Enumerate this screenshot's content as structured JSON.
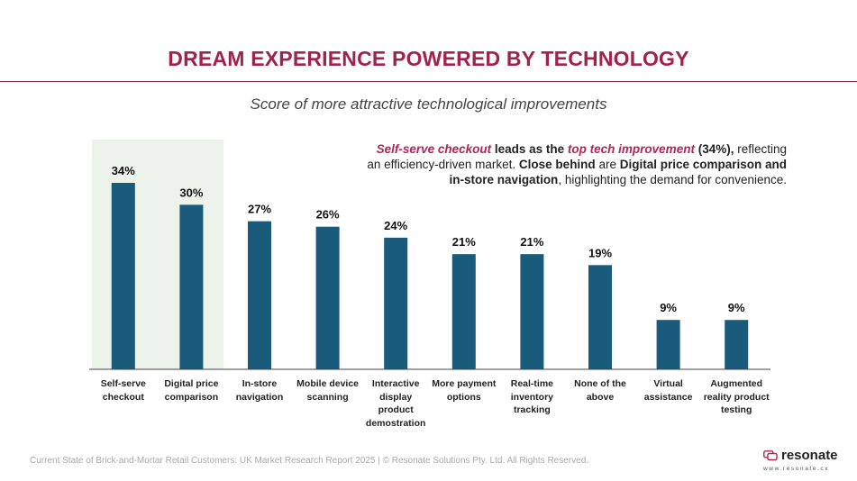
{
  "header": {
    "title": "DREAM EXPERIENCE POWERED BY TECHNOLOGY",
    "subtitle": "Score of more attractive technological improvements"
  },
  "callout": {
    "p1_highlight": "Self-serve checkout",
    "p2": " leads as the ",
    "p3_highlight": "top tech improvement",
    "p4_bold": " (34%),",
    "p5": " reflecting an efficiency-driven market. ",
    "p6_bold": "Close behind",
    "p7": " are ",
    "p8_bold": "Digital price comparison and in-store navigation",
    "p9": ", highlighting the demand for convenience."
  },
  "footer": {
    "text": "Current State of Brick-and-Mortar Retail Customers: UK Market Research Report 2025 | © Resonate Solutions Pty. Ltd. All Rights Reserved."
  },
  "logo": {
    "name": "resonate",
    "url": "www.resonate.cx"
  },
  "colors": {
    "bar": "#1a5a7a",
    "highlight_bg": "#ebf3eb",
    "title": "#a3214f",
    "accent": "#b1245a"
  },
  "chart_data": {
    "type": "bar",
    "title": "Score of more attractive technological improvements",
    "categories": [
      "Self-serve checkout",
      "Digital price comparison",
      "In-store navigation",
      "Mobile device scanning",
      "Interactive display product demostration",
      "More payment options",
      "Real-time inventory tracking",
      "None of the above",
      "Virtual assistance",
      "Augmented reality product testing"
    ],
    "category_lines": [
      [
        "Self-serve",
        "checkout"
      ],
      [
        "Digital price",
        "comparison"
      ],
      [
        "In-store",
        "navigation"
      ],
      [
        "Mobile device",
        "scanning"
      ],
      [
        "Interactive",
        "display",
        "product",
        "demostration"
      ],
      [
        "More payment",
        "options"
      ],
      [
        "Real-time",
        "inventory",
        "tracking"
      ],
      [
        "None of the",
        "above"
      ],
      [
        "Virtual",
        "assistance"
      ],
      [
        "Augmented",
        "reality product",
        "testing"
      ]
    ],
    "values": [
      34,
      30,
      27,
      26,
      24,
      21,
      21,
      19,
      9,
      9
    ],
    "value_labels": [
      "34%",
      "30%",
      "27%",
      "26%",
      "24%",
      "21%",
      "21%",
      "19%",
      "9%",
      "9%"
    ],
    "unit": "%",
    "highlighted_index": 0,
    "ylim": [
      0,
      34
    ],
    "grid": false,
    "legend": "none"
  }
}
